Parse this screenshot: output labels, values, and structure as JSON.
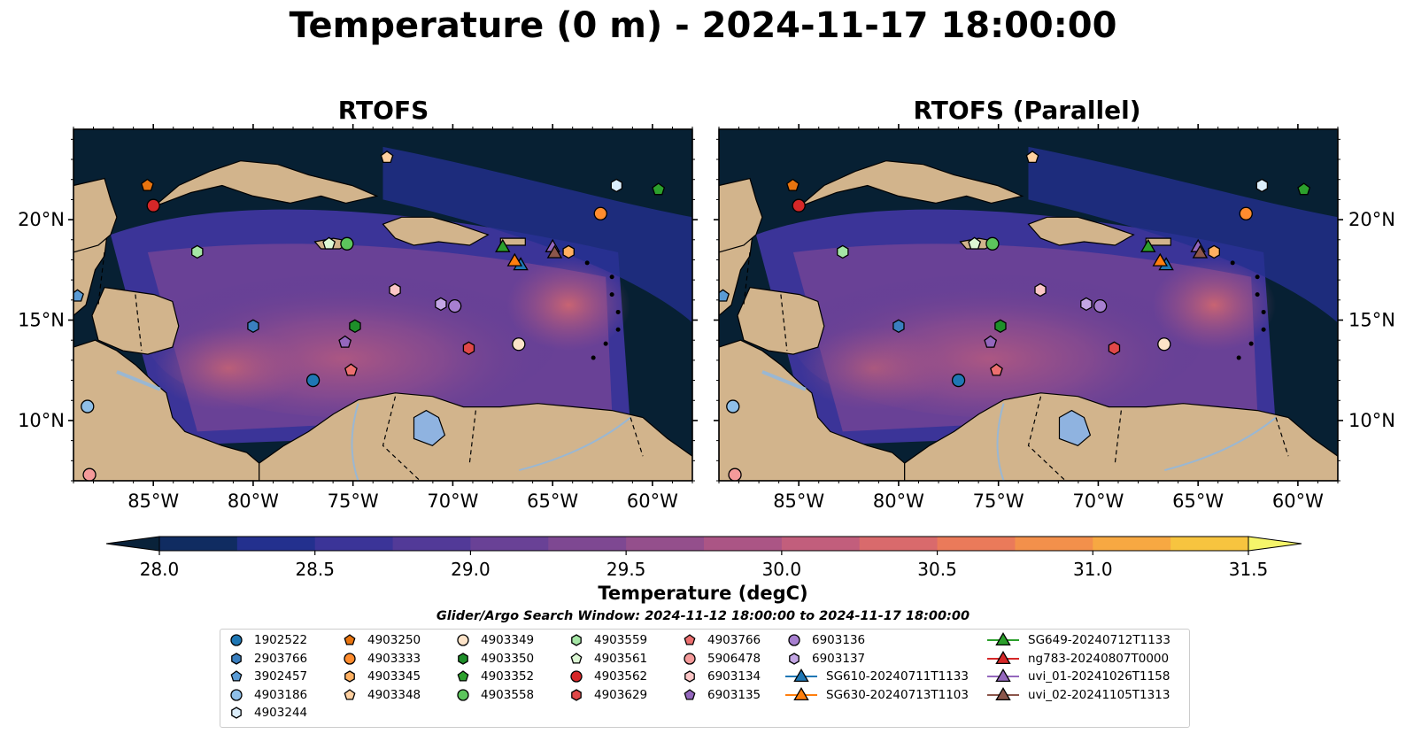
{
  "suptitle": "Temperature (0 m) - 2024-11-17 18:00:00",
  "panels": [
    {
      "title": "RTOFS"
    },
    {
      "title": "RTOFS (Parallel)"
    }
  ],
  "colors": {
    "ocean_deep": "#072033",
    "land": "#d2b48c",
    "lake": "#8fb3e0",
    "rivers": "#9ab7d2",
    "cmap": [
      "#09223a",
      "#102c61",
      "#23308e",
      "#3b3498",
      "#523a98",
      "#694196",
      "#7e4892",
      "#944f8c",
      "#ab5585",
      "#c25e7c",
      "#d96a6c",
      "#ea7a5a",
      "#f3904b",
      "#f7a842",
      "#f7c43f",
      "#f5e24a"
    ]
  },
  "chart_data": {
    "type": "heatmap",
    "map_extent": {
      "lon": [
        -89,
        -58
      ],
      "lat": [
        7,
        24.5
      ]
    },
    "xticks": [
      "85°W",
      "80°W",
      "75°W",
      "70°W",
      "65°W",
      "60°W"
    ],
    "xtick_values": [
      -85,
      -80,
      -75,
      -70,
      -65,
      -60
    ],
    "yticks": [
      "10°N",
      "15°N",
      "20°N"
    ],
    "ytick_values": [
      10,
      15,
      20
    ],
    "colorbar": {
      "label": "Temperature (degC)",
      "range": [
        28.0,
        31.5
      ],
      "step": 0.25,
      "ticks": [
        "28.0",
        "28.5",
        "29.0",
        "29.5",
        "30.0",
        "30.5",
        "31.0",
        "31.5"
      ],
      "tick_values": [
        28.0,
        28.5,
        29.0,
        29.5,
        30.0,
        30.5,
        31.0,
        31.5
      ],
      "extend": "both"
    },
    "legend": {
      "title": "Glider/Argo Search Window: 2024-11-12 18:00:00 to 2024-11-17 18:00:00",
      "columns": [
        [
          {
            "name": "1902522",
            "marker": "circle",
            "color": "#1f77b4"
          },
          {
            "name": "2903766",
            "marker": "hexagon",
            "color": "#3a7fbf"
          },
          {
            "name": "3902457",
            "marker": "pentagon",
            "color": "#5a9bd5"
          },
          {
            "name": "4903186",
            "marker": "circle",
            "color": "#8fbfe8"
          },
          {
            "name": "4903244",
            "marker": "hexagon",
            "color": "#dceefb"
          }
        ],
        [
          {
            "name": "4903250",
            "marker": "pentagon",
            "color": "#e8740f"
          },
          {
            "name": "4903333",
            "marker": "circle",
            "color": "#ff8c2e"
          },
          {
            "name": "4903345",
            "marker": "hexagon",
            "color": "#ffb061"
          },
          {
            "name": "4903348",
            "marker": "pentagon",
            "color": "#ffd0a0"
          }
        ],
        [
          {
            "name": "4903349",
            "marker": "circle",
            "color": "#fde3c8"
          },
          {
            "name": "4903350",
            "marker": "hexagon",
            "color": "#1e8f2a"
          },
          {
            "name": "4903352",
            "marker": "pentagon",
            "color": "#2ca02c"
          },
          {
            "name": "4903558",
            "marker": "circle",
            "color": "#5cc55c"
          }
        ],
        [
          {
            "name": "4903559",
            "marker": "hexagon",
            "color": "#a5e6a5"
          },
          {
            "name": "4903561",
            "marker": "pentagon",
            "color": "#dcf7d4"
          },
          {
            "name": "4903562",
            "marker": "circle",
            "color": "#d62728"
          },
          {
            "name": "4903629",
            "marker": "hexagon",
            "color": "#e04848"
          }
        ],
        [
          {
            "name": "4903766",
            "marker": "pentagon",
            "color": "#ec6f6f"
          },
          {
            "name": "5906478",
            "marker": "circle",
            "color": "#f59a9a"
          },
          {
            "name": "6903134",
            "marker": "hexagon",
            "color": "#fcc6c6"
          },
          {
            "name": "6903135",
            "marker": "pentagon",
            "color": "#9467bd"
          }
        ],
        [
          {
            "name": "6903136",
            "marker": "circle",
            "color": "#a77fd0"
          },
          {
            "name": "6903137",
            "marker": "hexagon",
            "color": "#c3a6e4"
          },
          {
            "name": "SG610-20240711T1133",
            "marker": "triangle-line",
            "color": "#1f77b4"
          },
          {
            "name": "SG630-20240713T1103",
            "marker": "triangle-line",
            "color": "#ff7f0e"
          }
        ],
        [
          {
            "name": "SG649-20240712T1133",
            "marker": "triangle-line",
            "color": "#2ca02c"
          },
          {
            "name": "ng783-20240807T0000",
            "marker": "triangle-line",
            "color": "#d62728"
          },
          {
            "name": "uvi_01-20241026T1158",
            "marker": "triangle-line",
            "color": "#9467bd"
          },
          {
            "name": "uvi_02-20241105T1313",
            "marker": "triangle-line",
            "color": "#8c564b"
          }
        ]
      ]
    },
    "points": [
      {
        "name": "1902522",
        "lon": -77.0,
        "lat": 12.0
      },
      {
        "name": "2903766",
        "lon": -80.0,
        "lat": 14.7
      },
      {
        "name": "3902457",
        "lon": -88.8,
        "lat": 16.2
      },
      {
        "name": "4903186",
        "lon": -88.3,
        "lat": 10.7
      },
      {
        "name": "4903244",
        "lon": -61.8,
        "lat": 21.7
      },
      {
        "name": "4903250",
        "lon": -85.3,
        "lat": 21.7
      },
      {
        "name": "4903333",
        "lon": -62.6,
        "lat": 20.3
      },
      {
        "name": "4903345",
        "lon": -64.2,
        "lat": 18.4
      },
      {
        "name": "4903348",
        "lon": -73.3,
        "lat": 23.1
      },
      {
        "name": "4903349",
        "lon": -66.7,
        "lat": 13.8
      },
      {
        "name": "4903350",
        "lon": -74.9,
        "lat": 14.7
      },
      {
        "name": "4903352",
        "lon": -59.7,
        "lat": 21.5
      },
      {
        "name": "4903558",
        "lon": -75.3,
        "lat": 18.8
      },
      {
        "name": "4903559",
        "lon": -82.8,
        "lat": 18.4
      },
      {
        "name": "4903561",
        "lon": -76.2,
        "lat": 18.8
      },
      {
        "name": "4903562",
        "lon": -85.0,
        "lat": 20.7
      },
      {
        "name": "4903629",
        "lon": -69.2,
        "lat": 13.6
      },
      {
        "name": "4903766",
        "lon": -75.1,
        "lat": 12.5
      },
      {
        "name": "5906478",
        "lon": -88.2,
        "lat": 7.3
      },
      {
        "name": "6903134",
        "lon": -72.9,
        "lat": 16.5
      },
      {
        "name": "6903135",
        "lon": -75.4,
        "lat": 13.9
      },
      {
        "name": "6903136",
        "lon": -69.9,
        "lat": 15.7
      },
      {
        "name": "6903137",
        "lon": -70.6,
        "lat": 15.8
      },
      {
        "name": "SG610-20240711T1133",
        "lon": -66.6,
        "lat": 17.7
      },
      {
        "name": "SG630-20240713T1103",
        "lon": -66.9,
        "lat": 17.9
      },
      {
        "name": "SG649-20240712T1133",
        "lon": -67.5,
        "lat": 18.6
      },
      {
        "name": "uvi_01-20241026T1158",
        "lon": -65.0,
        "lat": 18.6
      },
      {
        "name": "uvi_02-20241105T1313",
        "lon": -64.9,
        "lat": 18.3
      }
    ]
  }
}
